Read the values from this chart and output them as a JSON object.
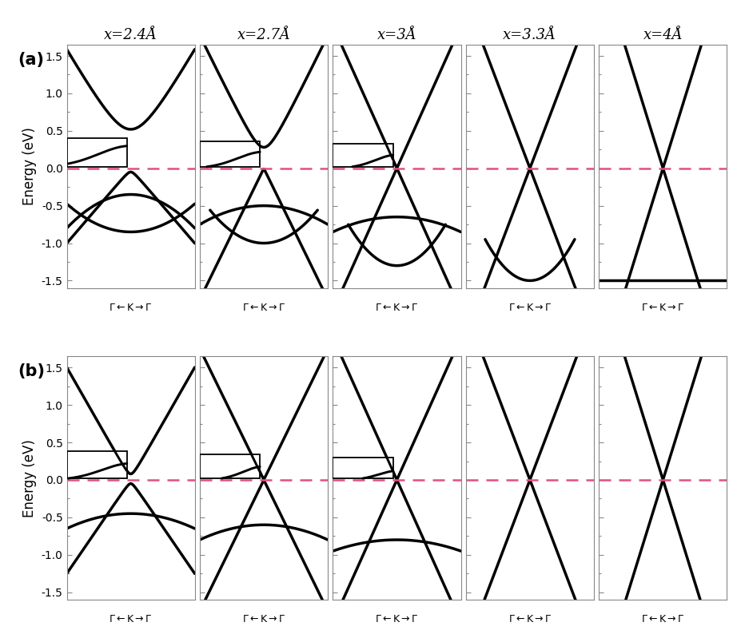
{
  "title_labels": [
    "x=2.4Å",
    "x=2.7Å",
    "x=3Å",
    "x=3.3Å",
    "x=4Å"
  ],
  "row_labels": [
    "(a)",
    "(b)"
  ],
  "ylabel": "Energy (eV)",
  "ylim": [
    -1.6,
    1.65
  ],
  "yticks": [
    -1.5,
    -1.0,
    -0.5,
    0.0,
    0.5,
    1.0,
    1.5
  ],
  "dashed_line_color": "#e05080",
  "line_color": "black",
  "line_width": 2.5,
  "background_color": "white",
  "figsize": [
    9.28,
    7.99
  ],
  "dpi": 100,
  "panel_bg": "#f0f4f8"
}
